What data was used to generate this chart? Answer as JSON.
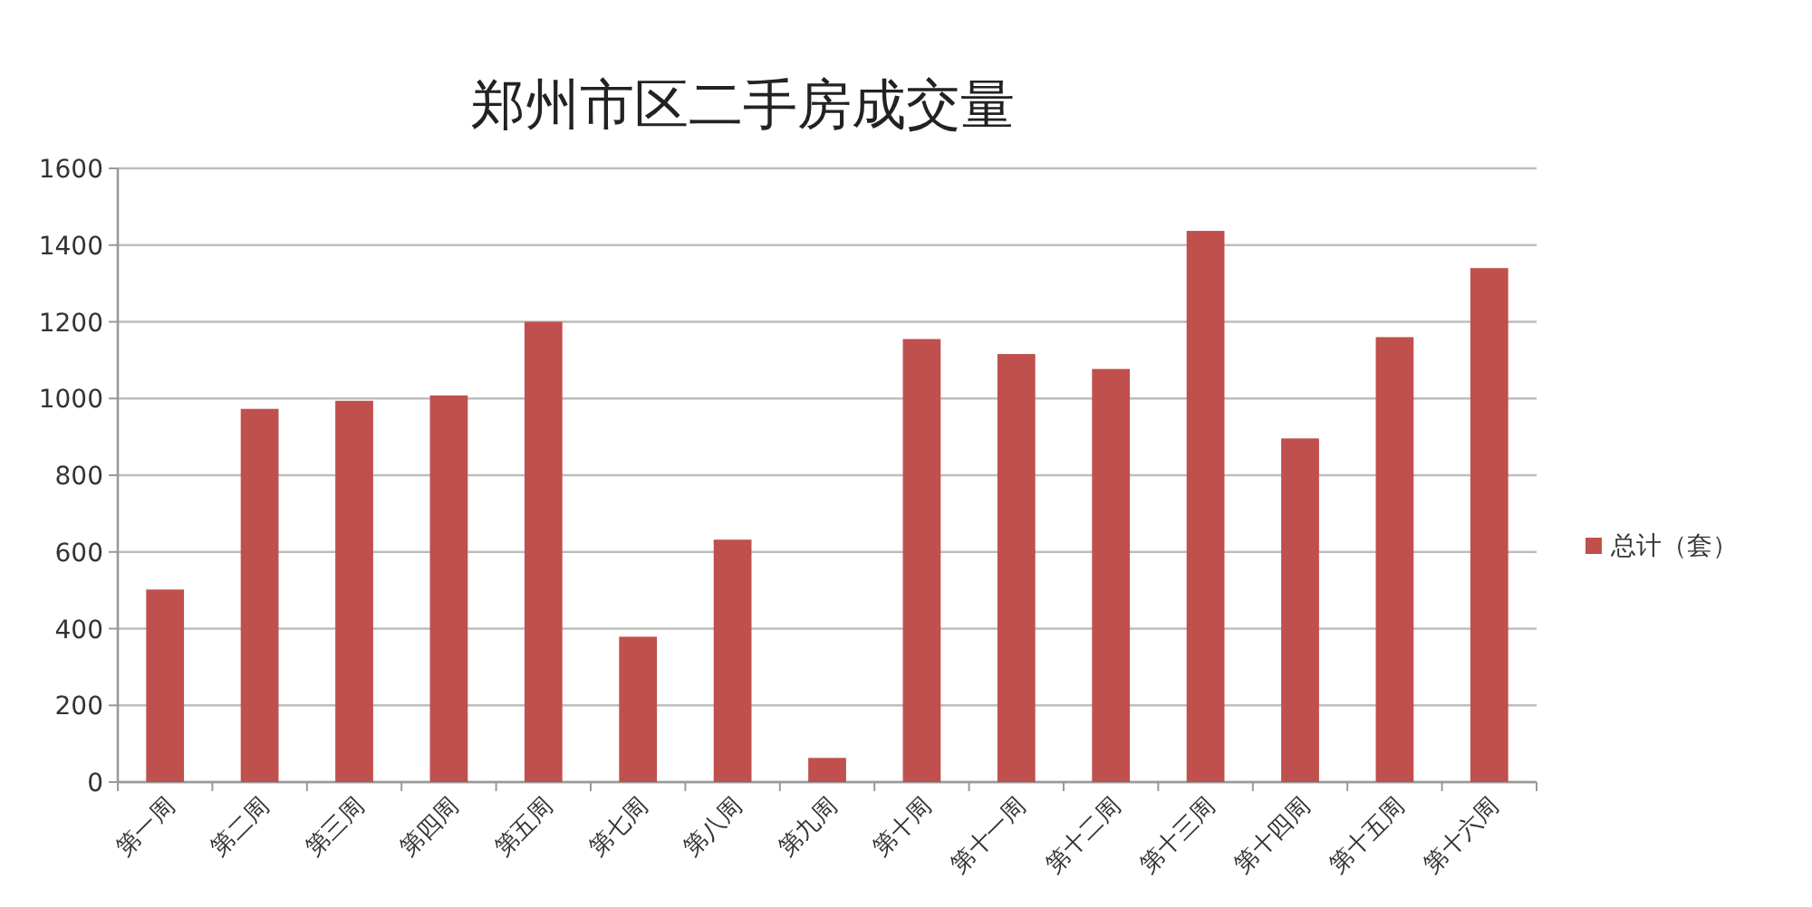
{
  "chart_data": {
    "type": "bar",
    "title": "郑州市区二手房成交量",
    "categories": [
      "第一周",
      "第二周",
      "第三周",
      "第四周",
      "第五周",
      "第七周",
      "第八周",
      "第九周",
      "第十周",
      "第十一周",
      "第十二周",
      "第十三周",
      "第十四周",
      "第十五周",
      "第十六周"
    ],
    "series": [
      {
        "name": "总计（套）",
        "color": "#c0504d",
        "values": [
          502,
          973,
          994,
          1008,
          1200,
          379,
          632,
          63,
          1155,
          1116,
          1077,
          1437,
          896,
          1160,
          1340
        ]
      }
    ],
    "ylim": [
      0,
      1600
    ],
    "yticks": [
      0,
      200,
      400,
      600,
      800,
      1000,
      1200,
      1400,
      1600
    ],
    "grid": "y",
    "legend": "right"
  }
}
